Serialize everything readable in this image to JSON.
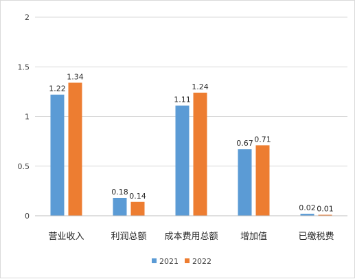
{
  "chart_data": {
    "type": "bar",
    "categories": [
      "营业收入",
      "利润总额",
      "成本费用总额",
      "增加值",
      "已缴税费"
    ],
    "series": [
      {
        "name": "2021",
        "values": [
          1.22,
          0.18,
          1.11,
          0.67,
          0.02
        ],
        "labels": [
          "1.22",
          "0.18",
          "1.11",
          "0.67",
          "0.02"
        ],
        "color": "#5b9bd5"
      },
      {
        "name": "2022",
        "values": [
          1.34,
          0.14,
          1.24,
          0.71,
          0.01
        ],
        "labels": [
          "1.34",
          "0.14",
          "1.24",
          "0.71",
          "0.01"
        ],
        "color": "#ed7d31"
      }
    ],
    "yticks": [
      "0",
      "0.5",
      "1",
      "1.5",
      "2"
    ],
    "ylim": [
      0,
      2
    ],
    "gridlines": true,
    "legend_position": "bottom"
  }
}
